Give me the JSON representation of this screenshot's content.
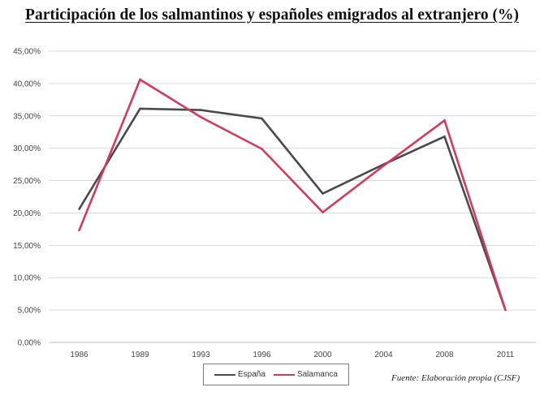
{
  "chart_data": {
    "type": "line",
    "title": "Participación de los salmantinos y españoles emigrados al extranjero (%)",
    "categories": [
      "1986",
      "1989",
      "1993",
      "1996",
      "2000",
      "2004",
      "2008",
      "2011"
    ],
    "series": [
      {
        "name": "España",
        "color": "#4a4a4a",
        "values": [
          20.6,
          36.1,
          35.9,
          34.6,
          23.0,
          27.5,
          31.8,
          5.0
        ]
      },
      {
        "name": "Salamanca",
        "color": "#d6395f",
        "values": [
          17.3,
          40.6,
          34.8,
          29.9,
          20.1,
          27.3,
          34.3,
          5.0
        ]
      }
    ],
    "ylim": [
      0,
      45
    ],
    "yticks": [
      "0,00%",
      "5,00%",
      "10,00%",
      "15,00%",
      "20,00%",
      "25,00%",
      "30,00%",
      "35,00%",
      "40,00%",
      "45,00%"
    ],
    "xlabel": "",
    "ylabel": "",
    "legend_position": "bottom",
    "source": "Fuente: Elaboración propia (CJSF)"
  }
}
